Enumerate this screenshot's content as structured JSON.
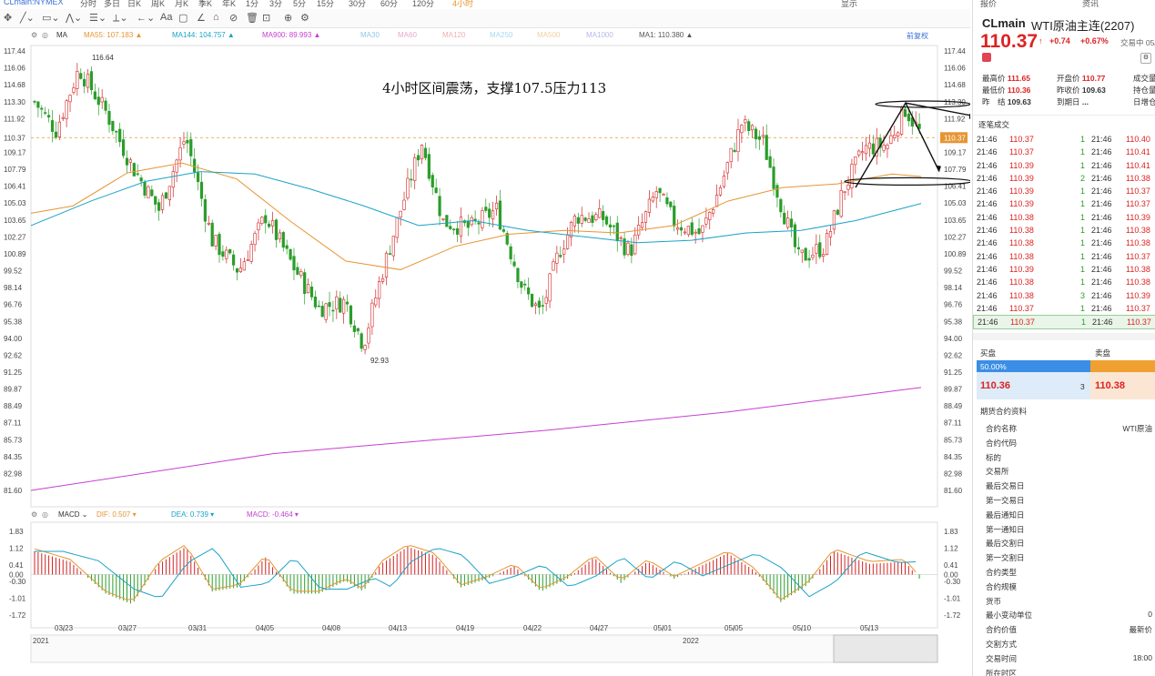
{
  "topbar": {
    "symbol": "CLmain:NYMEX",
    "periods": [
      "分时",
      "多日",
      "日K",
      "周K",
      "月K",
      "季K",
      "年K",
      "1分",
      "3分",
      "5分",
      "15分",
      "30分",
      "60分",
      "120分",
      "4小时"
    ],
    "display": "显示"
  },
  "legends": {
    "settings_icon": "gear-icon",
    "ma_label": "MA",
    "items": [
      {
        "text": "MA55: 107.183",
        "color": "#e69533"
      },
      {
        "text": "MA144: 104.757",
        "color": "#1aa3c8"
      },
      {
        "text": "MA900: 89.993",
        "color": "#c63fd1"
      },
      {
        "text": "MA30",
        "color": "#8fc8e8"
      },
      {
        "text": "MA60",
        "color": "#e8a8c8"
      },
      {
        "text": "MA120",
        "color": "#f0b0b0"
      },
      {
        "text": "MA250",
        "color": "#a8d8f0"
      },
      {
        "text": "MA500",
        "color": "#f0d0a0"
      },
      {
        "text": "MA1000",
        "color": "#b8b8e8"
      },
      {
        "text": "MA1: 110.380",
        "color": "#555555"
      }
    ],
    "restore": "前复权"
  },
  "price_axis": [
    "117.44",
    "116.06",
    "114.68",
    "113.30",
    "111.92",
    "110.37",
    "109.17",
    "107.79",
    "106.41",
    "105.03",
    "103.65",
    "102.27",
    "100.89",
    "99.52",
    "98.14",
    "96.76",
    "95.38",
    "94.00",
    "92.62",
    "91.25",
    "89.87",
    "88.49",
    "87.11",
    "85.73",
    "84.35",
    "82.98",
    "81.60"
  ],
  "annotation": "4小时区间震荡，支撑107.5压力113",
  "high_label": "116.64",
  "low_label": "92.93",
  "macd_legend": {
    "name": "MACD",
    "dif": "DIF: 0.507",
    "dea": "DEA: 0.739",
    "macd": "MACD: -0.464"
  },
  "macd_axis": [
    "1.83",
    "1.12",
    "0.41",
    "0.00",
    "-0.30",
    "-1.01",
    "-1.72"
  ],
  "date_axis": [
    "03/23",
    "03/27",
    "03/31",
    "04/05",
    "04/08",
    "04/13",
    "04/19",
    "04/22",
    "04/27",
    "05/01",
    "05/05",
    "05/10",
    "05/13"
  ],
  "year_labels": [
    "2021",
    "2022"
  ],
  "colors": {
    "up": "#d22222",
    "down": "#2a9d2a",
    "ma55": "#e69533",
    "ma144": "#1aa3c8",
    "ma900": "#c63fd1",
    "dif": "#e69533",
    "dea": "#1aa3c8"
  },
  "panel": {
    "tabs": [
      "报价",
      "资讯"
    ],
    "symbol": "CLmain",
    "name": "WTI原油主连(2207)",
    "price": "110.37",
    "change": "+0.74",
    "change_pct": "+0.67%",
    "exchange": "交易中 05/",
    "stats": [
      {
        "k": "最高价",
        "v": "111.65",
        "x": 10,
        "y": 80,
        "cls": "red"
      },
      {
        "k": "开盘价",
        "v": "110.77",
        "x": 92,
        "y": 80,
        "cls": "red"
      },
      {
        "k": "成交量",
        "v": "",
        "x": 176,
        "y": 80,
        "cls": ""
      },
      {
        "k": "最低价",
        "v": "110.36",
        "x": 10,
        "y": 93,
        "cls": "red"
      },
      {
        "k": "昨收价",
        "v": "109.63",
        "x": 92,
        "y": 93,
        "cls": ""
      },
      {
        "k": "持仓量",
        "v": "",
        "x": 176,
        "y": 93,
        "cls": ""
      },
      {
        "k": "昨　结",
        "v": "109.63",
        "x": 10,
        "y": 106,
        "cls": ""
      },
      {
        "k": "到期日",
        "v": "...",
        "x": 92,
        "y": 106,
        "cls": ""
      },
      {
        "k": "日增仓",
        "v": "",
        "x": 176,
        "y": 106,
        "cls": ""
      }
    ],
    "trades_title": "逐笔成交",
    "trades": [
      [
        "21:46",
        "110.37",
        "1",
        "21:46",
        "110.40"
      ],
      [
        "21:46",
        "110.37",
        "1",
        "21:46",
        "110.41"
      ],
      [
        "21:46",
        "110.39",
        "1",
        "21:46",
        "110.41"
      ],
      [
        "21:46",
        "110.39",
        "2",
        "21:46",
        "110.38"
      ],
      [
        "21:46",
        "110.39",
        "1",
        "21:46",
        "110.37"
      ],
      [
        "21:46",
        "110.39",
        "1",
        "21:46",
        "110.37"
      ],
      [
        "21:46",
        "110.38",
        "1",
        "21:46",
        "110.39"
      ],
      [
        "21:46",
        "110.38",
        "1",
        "21:46",
        "110.38"
      ],
      [
        "21:46",
        "110.38",
        "1",
        "21:46",
        "110.38"
      ],
      [
        "21:46",
        "110.38",
        "1",
        "21:46",
        "110.37"
      ],
      [
        "21:46",
        "110.39",
        "1",
        "21:46",
        "110.38"
      ],
      [
        "21:46",
        "110.38",
        "1",
        "21:46",
        "110.38"
      ],
      [
        "21:46",
        "110.38",
        "3",
        "21:46",
        "110.39"
      ],
      [
        "21:46",
        "110.37",
        "1",
        "21:46",
        "110.37"
      ],
      [
        "21:46",
        "110.37",
        "1",
        "21:46",
        "110.37"
      ]
    ],
    "buy_label": "买盘",
    "sell_label": "卖盘",
    "buy_pct": "50.00%",
    "bid": "110.36",
    "bid_qty": "3",
    "ask": "110.38",
    "info_title": "期货合约资料",
    "info": [
      {
        "k": "合约名称",
        "v": "WTI原油"
      },
      {
        "k": "合约代码",
        "v": ""
      },
      {
        "k": "标的",
        "v": ""
      },
      {
        "k": "交易所",
        "v": ""
      },
      {
        "k": "最后交易日",
        "v": ""
      },
      {
        "k": "第一交易日",
        "v": ""
      },
      {
        "k": "最后通知日",
        "v": ""
      },
      {
        "k": "第一通知日",
        "v": ""
      },
      {
        "k": "最后交割日",
        "v": ""
      },
      {
        "k": "第一交割日",
        "v": ""
      },
      {
        "k": "合约类型",
        "v": ""
      },
      {
        "k": "合约规模",
        "v": ""
      },
      {
        "k": "货币",
        "v": ""
      },
      {
        "k": "最小变动单位",
        "v": "0"
      },
      {
        "k": "合约价值",
        "v": "最新价"
      },
      {
        "k": "交割方式",
        "v": ""
      },
      {
        "k": "交易时间",
        "v": "18:00"
      },
      {
        "k": "所在时区",
        "v": ""
      }
    ]
  }
}
